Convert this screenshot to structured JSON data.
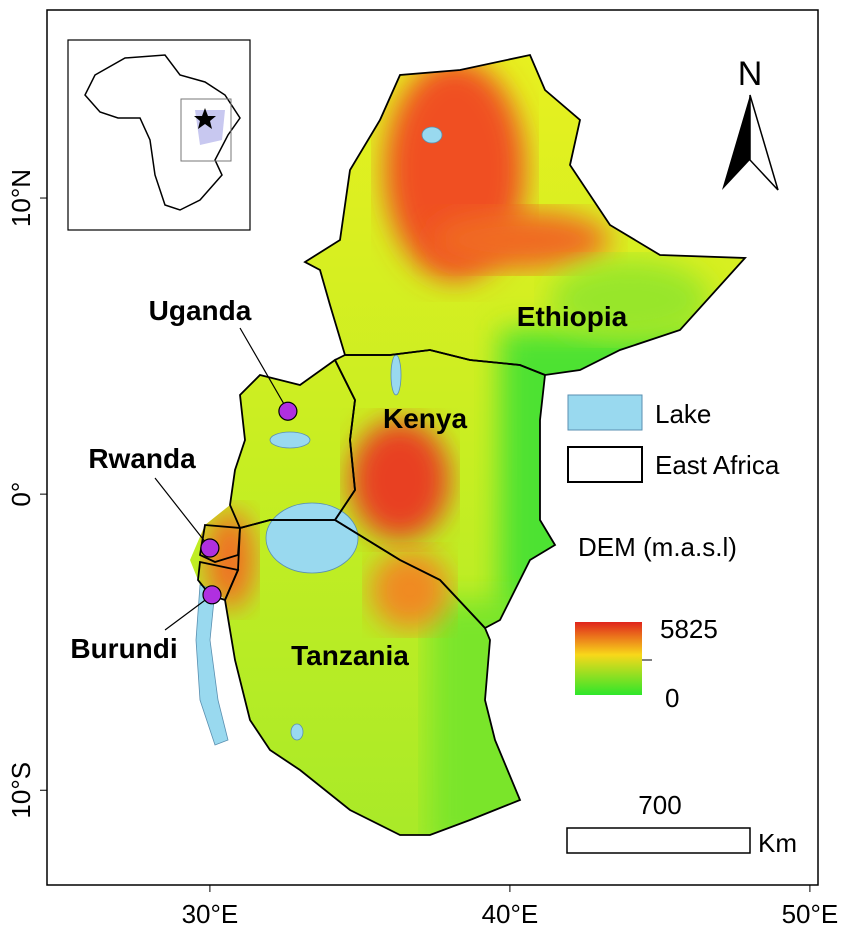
{
  "map": {
    "xlim": [
      24.57,
      50.27
    ],
    "ylim": [
      -13.2,
      16.35
    ],
    "xticks": [
      {
        "value": 30,
        "label": "30°E"
      },
      {
        "value": 40,
        "label": "40°E"
      },
      {
        "value": 50,
        "label": "50°E"
      }
    ],
    "yticks": [
      {
        "value": 10,
        "label": "10°N"
      },
      {
        "value": 0,
        "label": "0°"
      },
      {
        "value": -10,
        "label": "10°S"
      }
    ],
    "countries": [
      "Ethiopia",
      "Kenya",
      "Uganda",
      "Rwanda",
      "Burundi",
      "Tanzania"
    ],
    "points": [
      {
        "name": "Uganda",
        "lon": 32.6,
        "lat": 2.8
      },
      {
        "name": "Rwanda",
        "lon": 30.0,
        "lat": -1.82
      },
      {
        "name": "Burundi",
        "lon": 30.07,
        "lat": -3.4
      }
    ],
    "north": "N",
    "legend": {
      "lake": "Lake",
      "region": "East Africa",
      "dem_title": "DEM (m.a.s.l)",
      "dem_max": "5825",
      "dem_min": "0"
    },
    "scale_bar": {
      "distance": "700",
      "unit": "Km"
    }
  }
}
